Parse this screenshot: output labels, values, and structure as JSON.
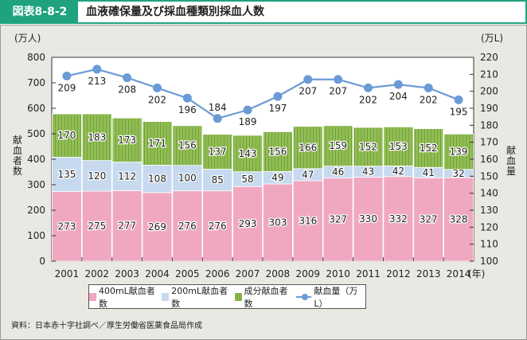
{
  "header": {
    "figure_label": "図表8-8-2",
    "title": "血液確保量及び採血種類別採血人数"
  },
  "colors": {
    "accent": "#1fa37f",
    "ml400": "#f0a8c0",
    "ml200": "#c6d9ef",
    "component": "#98c45a",
    "line": "#6b9bd6"
  },
  "chart_data": {
    "type": "bar",
    "subtype": "stacked-bar-with-line",
    "categories": [
      "2001",
      "2002",
      "2003",
      "2004",
      "2005",
      "2006",
      "2007",
      "2008",
      "2009",
      "2010",
      "2011",
      "2012",
      "2013",
      "2014"
    ],
    "x_unit": "(年)",
    "left_axis": {
      "unit": "(万人)",
      "label": "献血者数",
      "ylim": [
        0,
        800
      ],
      "ticks": [
        0,
        100,
        200,
        300,
        400,
        500,
        600,
        700,
        800
      ]
    },
    "right_axis": {
      "unit": "(万L)",
      "label": "献血量",
      "ylim": [
        100,
        220
      ],
      "ticks": [
        100,
        110,
        120,
        130,
        140,
        150,
        160,
        170,
        180,
        190,
        200,
        210,
        220
      ]
    },
    "series": [
      {
        "name": "400mL献血者数",
        "type": "bar",
        "axis": "left",
        "values": [
          273,
          275,
          277,
          269,
          276,
          276,
          293,
          303,
          316,
          327,
          330,
          332,
          327,
          328
        ]
      },
      {
        "name": "200mL献血者数",
        "type": "bar",
        "axis": "left",
        "values": [
          135,
          120,
          112,
          108,
          100,
          85,
          58,
          49,
          47,
          46,
          43,
          42,
          41,
          32
        ]
      },
      {
        "name": "成分献血者数",
        "type": "bar",
        "axis": "left",
        "values": [
          170,
          183,
          173,
          171,
          156,
          137,
          143,
          156,
          166,
          159,
          152,
          153,
          152,
          139
        ]
      },
      {
        "name": "献血量（万L）",
        "type": "line",
        "axis": "right",
        "values": [
          209,
          213,
          208,
          202,
          196,
          184,
          189,
          197,
          207,
          207,
          202,
          204,
          202,
          195
        ]
      }
    ],
    "legend_position": "bottom",
    "grid": false
  },
  "legend": {
    "items": [
      "400mL献血者数",
      "200mL献血者数",
      "成分献血者数",
      "献血量（万L）"
    ]
  },
  "source": "資料：日本赤十字社調べ／厚生労働省医薬食品局作成"
}
